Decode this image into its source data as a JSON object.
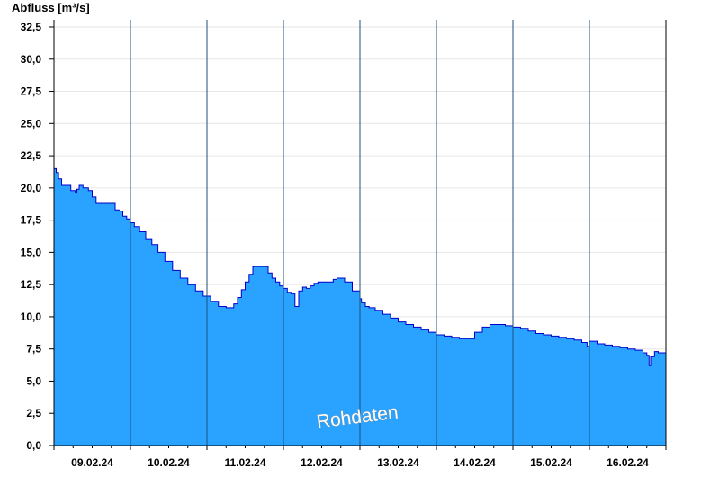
{
  "chart_data": {
    "type": "area",
    "ylabel": "Abfluss [m³/s]",
    "watermark": "Rohdaten",
    "ylim": [
      0,
      32.5
    ],
    "yticks": [
      0,
      2.5,
      5,
      7.5,
      10,
      12.5,
      15,
      17.5,
      20,
      22.5,
      25,
      27.5,
      30,
      32.5
    ],
    "ytick_labels": [
      "0,0",
      "2,5",
      "5,0",
      "7,5",
      "10,0",
      "12,5",
      "15,0",
      "17,5",
      "20,0",
      "22,5",
      "25,0",
      "27,5",
      "30,0",
      "32,5"
    ],
    "x_day_labels": [
      "09.02.24",
      "10.02.24",
      "11.02.24",
      "12.02.24",
      "13.02.24",
      "14.02.24",
      "15.02.24",
      "16.02.24"
    ],
    "xlim_days": [
      0,
      8
    ],
    "grid": true,
    "fill_color": "#29A3FF",
    "line_color": "#0000CC",
    "series": [
      {
        "x": [
          0,
          0.03,
          0.06,
          0.1,
          0.15,
          0.22,
          0.28,
          0.3,
          0.33,
          0.38,
          0.45,
          0.5,
          0.55,
          0.62,
          0.7,
          0.8,
          0.85,
          0.9,
          0.95,
          1.0,
          1.05,
          1.12,
          1.2,
          1.28,
          1.36,
          1.45,
          1.55,
          1.65,
          1.75,
          1.85,
          1.95,
          2.05,
          2.15,
          2.25,
          2.3,
          2.35,
          2.4,
          2.45,
          2.5,
          2.55,
          2.6,
          2.65,
          2.7,
          2.75,
          2.8,
          2.85,
          2.9,
          2.95,
          3.0,
          3.05,
          3.1,
          3.15,
          3.2,
          3.25,
          3.3,
          3.35,
          3.4,
          3.45,
          3.5,
          3.55,
          3.6,
          3.65,
          3.7,
          3.8,
          3.9,
          4.0,
          4.02,
          4.07,
          4.12,
          4.2,
          4.3,
          4.4,
          4.5,
          4.6,
          4.7,
          4.8,
          4.9,
          5.0,
          5.1,
          5.2,
          5.3,
          5.4,
          5.5,
          5.6,
          5.7,
          5.8,
          5.9,
          6.0,
          6.05,
          6.1,
          6.2,
          6.3,
          6.4,
          6.5,
          6.6,
          6.7,
          6.8,
          6.9,
          6.95,
          6.97,
          7.0,
          7.1,
          7.2,
          7.3,
          7.4,
          7.5,
          7.6,
          7.7,
          7.75,
          7.78,
          7.8,
          7.85,
          7.9,
          8.0
        ],
        "y": [
          21.5,
          21.2,
          20.7,
          20.2,
          20.2,
          19.8,
          19.6,
          19.9,
          20.2,
          20.0,
          19.8,
          19.3,
          18.8,
          18.8,
          18.8,
          18.3,
          18.2,
          17.8,
          17.6,
          17.3,
          17.0,
          16.6,
          16.0,
          15.6,
          15.0,
          14.3,
          13.6,
          13.0,
          12.5,
          12.0,
          11.6,
          11.2,
          10.8,
          10.7,
          10.7,
          11.0,
          11.5,
          12.1,
          12.7,
          13.3,
          13.9,
          13.9,
          13.9,
          13.9,
          13.4,
          13.0,
          12.7,
          12.4,
          12.2,
          11.9,
          11.8,
          10.8,
          12.0,
          12.3,
          12.2,
          12.4,
          12.6,
          12.7,
          12.7,
          12.7,
          12.7,
          12.9,
          13.0,
          12.7,
          12.0,
          11.4,
          11.1,
          10.8,
          10.7,
          10.5,
          10.2,
          9.9,
          9.6,
          9.4,
          9.2,
          9.0,
          8.8,
          8.6,
          8.5,
          8.4,
          8.3,
          8.3,
          8.8,
          9.2,
          9.4,
          9.4,
          9.3,
          9.2,
          9.2,
          9.1,
          8.9,
          8.7,
          8.6,
          8.5,
          8.4,
          8.3,
          8.2,
          8.0,
          8.0,
          7.7,
          8.1,
          7.9,
          7.8,
          7.7,
          7.6,
          7.5,
          7.4,
          7.2,
          7.0,
          6.2,
          6.9,
          7.3,
          7.2,
          7.2
        ]
      }
    ]
  }
}
